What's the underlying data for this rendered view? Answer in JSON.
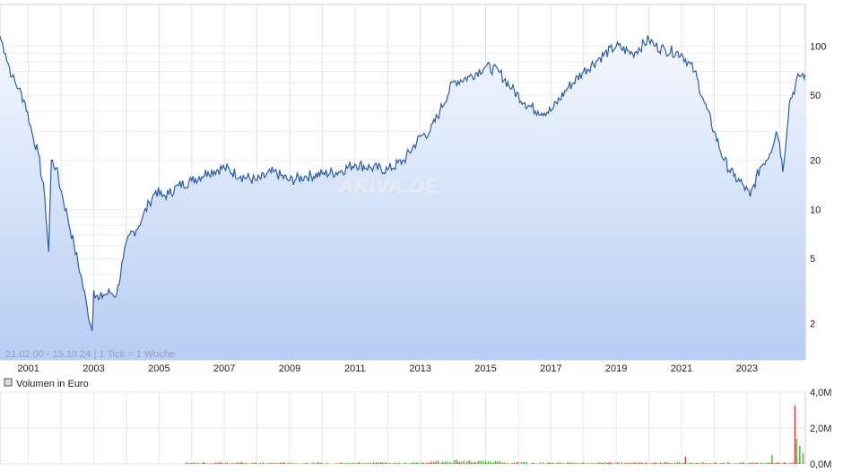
{
  "chart_data": [
    {
      "type": "line",
      "series": [
        {
          "x": [
            2000.13,
            2000.3,
            2000.5,
            2000.7,
            2000.9,
            2001.1,
            2001.3,
            2001.5,
            2001.62,
            2001.7,
            2001.85,
            2002.0,
            2002.2,
            2002.4,
            2002.6,
            2002.8,
            2002.95,
            2003.0,
            2003.15,
            2003.3,
            2003.5,
            2003.7,
            2003.9,
            2004.1,
            2004.3,
            2004.5,
            2004.7,
            2004.9,
            2005.1,
            2005.3,
            2005.6,
            2006.0,
            2006.5,
            2007.0,
            2007.5,
            2008.0,
            2008.5,
            2009.0,
            2009.5,
            2010.0,
            2010.5,
            2011.0,
            2011.5,
            2012.0,
            2012.5,
            2013.0,
            2013.3,
            2013.6,
            2014.0,
            2014.5,
            2015.0,
            2015.4,
            2015.8,
            2016.2,
            2016.6,
            2017.0,
            2017.5,
            2018.0,
            2018.5,
            2019.0,
            2019.5,
            2020.0,
            2020.2,
            2020.5,
            2021.0,
            2021.4,
            2021.7,
            2022.0,
            2022.3,
            2022.6,
            2022.9,
            2023.1,
            2023.4,
            2023.7,
            2023.9,
            2024.0,
            2024.1,
            2024.3,
            2024.6,
            2024.79
          ],
          "values": [
            115,
            90,
            65,
            55,
            45,
            30,
            22,
            12,
            5.5,
            20,
            18,
            13,
            9,
            6,
            4,
            2.5,
            1.8,
            3.2,
            2.8,
            3.0,
            3.1,
            3.0,
            5,
            7,
            7.5,
            9,
            11,
            13,
            12,
            12.5,
            14,
            15,
            17,
            18,
            16,
            15,
            17,
            15,
            16,
            16.5,
            17,
            19,
            18,
            17.5,
            20,
            28,
            30,
            40,
            60,
            65,
            75,
            70,
            55,
            45,
            40,
            40,
            55,
            70,
            85,
            100,
            90,
            110,
            100,
            95,
            90,
            70,
            45,
            30,
            20,
            16,
            14,
            12,
            18,
            22,
            30,
            26,
            17,
            45,
            66,
            67
          ],
          "ticks_y": [
            "100",
            "50",
            "20",
            "10",
            "5",
            "2"
          ],
          "ticks_x": [
            "2001",
            "2003",
            "2005",
            "2007",
            "2009",
            "2011",
            "2013",
            "2015",
            "2017",
            "2019",
            "2021",
            "2023"
          ],
          "scale": "log",
          "ylim": [
            1.2,
            180
          ],
          "xlim": [
            2000.13,
            2024.79
          ]
        }
      ],
      "grid": true
    },
    {
      "type": "bar",
      "title": "Volumen in Euro",
      "ticks_y": [
        "4,0M",
        "2,0M",
        "0,0M"
      ],
      "ylim": [
        0,
        4.0
      ],
      "note": "small bars; spike near 3.3M at end of 2024"
    }
  ],
  "footnote": "21.02.00 - 15.10.24 | 1 Tick = 1 Woche",
  "watermark": "ARIVA.DE",
  "colors": {
    "line": "#2a5caa",
    "fill_top": "#eef4fd",
    "fill_bottom": "#b9cff4",
    "grid": "#dddddd",
    "vol_green": "#3fbf3f",
    "vol_red": "#d44"
  }
}
